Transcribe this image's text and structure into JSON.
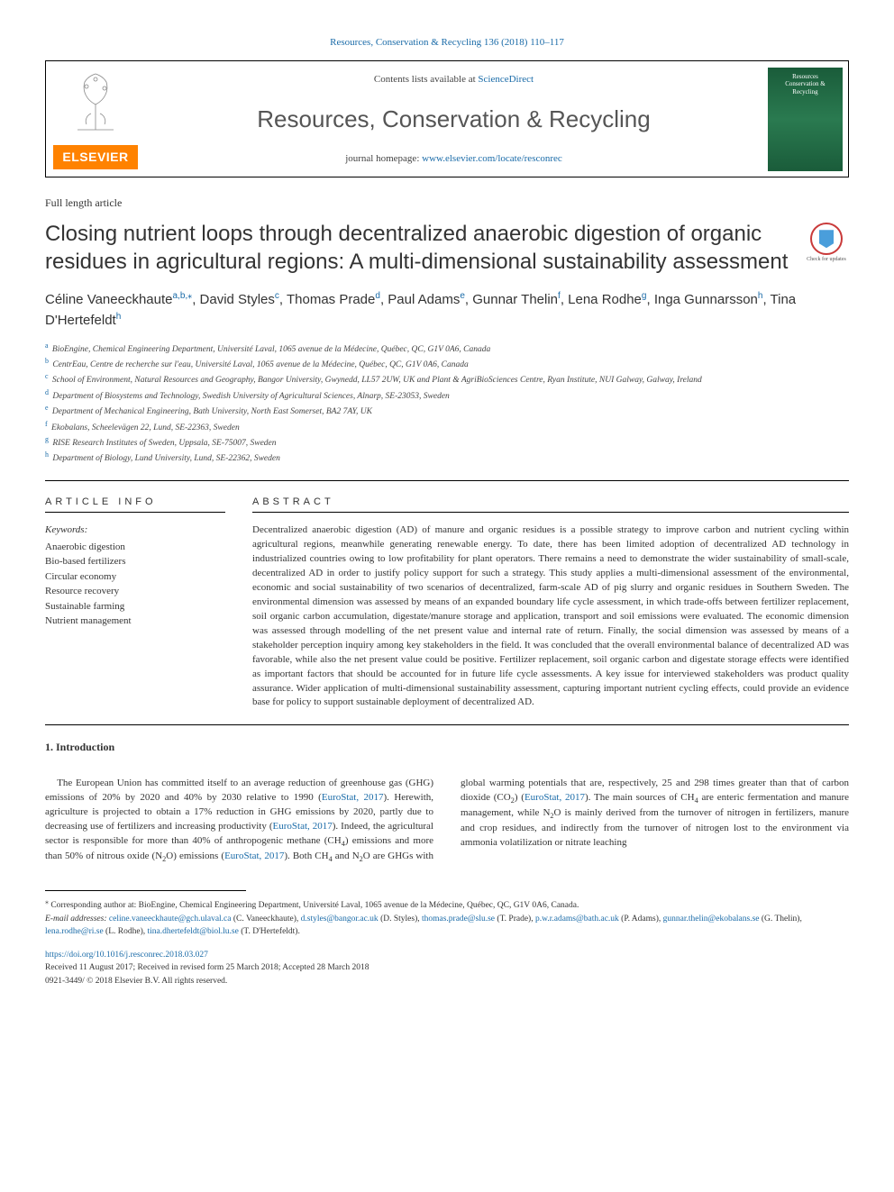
{
  "journal_ref": "Resources, Conservation & Recycling 136 (2018) 110–117",
  "header": {
    "contents_prefix": "Contents lists available at ",
    "contents_link": "ScienceDirect",
    "journal_name": "Resources, Conservation & Recycling",
    "homepage_prefix": "journal homepage: ",
    "homepage_link": "www.elsevier.com/locate/resconrec",
    "elsevier": "ELSEVIER",
    "cover_line1": "Resources",
    "cover_line2": "Conservation &",
    "cover_line3": "Recycling"
  },
  "article_type": "Full length article",
  "title": "Closing nutrient loops through decentralized anaerobic digestion of organic residues in agricultural regions: A multi-dimensional sustainability assessment",
  "check_updates": "Check for updates",
  "authors": [
    {
      "name": "Céline Vaneeckhaute",
      "aff": "a,b,",
      "corr": "⁎"
    },
    {
      "name": "David Styles",
      "aff": "c"
    },
    {
      "name": "Thomas Prade",
      "aff": "d"
    },
    {
      "name": "Paul Adams",
      "aff": "e"
    },
    {
      "name": "Gunnar Thelin",
      "aff": "f"
    },
    {
      "name": "Lena Rodhe",
      "aff": "g"
    },
    {
      "name": "Inga Gunnarsson",
      "aff": "h"
    },
    {
      "name": "Tina D'Hertefeldt",
      "aff": "h"
    }
  ],
  "affiliations": [
    {
      "key": "a",
      "text": "BioEngine, Chemical Engineering Department, Université Laval, 1065 avenue de la Médecine, Québec, QC, G1V 0A6, Canada"
    },
    {
      "key": "b",
      "text": "CentrEau, Centre de recherche sur l'eau, Université Laval, 1065 avenue de la Médecine, Québec, QC, G1V 0A6, Canada"
    },
    {
      "key": "c",
      "text": "School of Environment, Natural Resources and Geography, Bangor University, Gwynedd, LL57 2UW, UK and Plant & AgriBioSciences Centre, Ryan Institute, NUI Galway, Galway, Ireland"
    },
    {
      "key": "d",
      "text": "Department of Biosystems and Technology, Swedish University of Agricultural Sciences, Alnarp, SE-23053, Sweden"
    },
    {
      "key": "e",
      "text": "Department of Mechanical Engineering, Bath University, North East Somerset, BA2 7AY, UK"
    },
    {
      "key": "f",
      "text": "Ekobalans, Scheelevägen 22, Lund, SE-22363, Sweden"
    },
    {
      "key": "g",
      "text": "RISE Research Institutes of Sweden, Uppsala, SE-75007, Sweden"
    },
    {
      "key": "h",
      "text": "Department of Biology, Lund University, Lund, SE-22362, Sweden"
    }
  ],
  "article_info_heading": "ARTICLE INFO",
  "keywords_label": "Keywords:",
  "keywords": [
    "Anaerobic digestion",
    "Bio-based fertilizers",
    "Circular economy",
    "Resource recovery",
    "Sustainable farming",
    "Nutrient management"
  ],
  "abstract_heading": "ABSTRACT",
  "abstract": "Decentralized anaerobic digestion (AD) of manure and organic residues is a possible strategy to improve carbon and nutrient cycling within agricultural regions, meanwhile generating renewable energy. To date, there has been limited adoption of decentralized AD technology in industrialized countries owing to low profitability for plant operators. There remains a need to demonstrate the wider sustainability of small-scale, decentralized AD in order to justify policy support for such a strategy. This study applies a multi-dimensional assessment of the environmental, economic and social sustainability of two scenarios of decentralized, farm-scale AD of pig slurry and organic residues in Southern Sweden. The environmental dimension was assessed by means of an expanded boundary life cycle assessment, in which trade-offs between fertilizer replacement, soil organic carbon accumulation, digestate/manure storage and application, transport and soil emissions were evaluated. The economic dimension was assessed through modelling of the net present value and internal rate of return. Finally, the social dimension was assessed by means of a stakeholder perception inquiry among key stakeholders in the field. It was concluded that the overall environmental balance of decentralized AD was favorable, while also the net present value could be positive. Fertilizer replacement, soil organic carbon and digestate storage effects were identified as important factors that should be accounted for in future life cycle assessments. A key issue for interviewed stakeholders was product quality assurance. Wider application of multi-dimensional sustainability assessment, capturing important nutrient cycling effects, could provide an evidence base for policy to support sustainable deployment of decentralized AD.",
  "intro_heading": "1. Introduction",
  "intro_p1_a": "The European Union has committed itself to an average reduction of greenhouse gas (GHG) emissions of 20% by 2020 and 40% by 2030 relative to 1990 (",
  "intro_p1_link1": "EuroStat, 2017",
  "intro_p1_b": "). Herewith, agriculture is projected to obtain a 17% reduction in GHG emissions by 2020, partly due to decreasing use of fertilizers and increasing productivity (",
  "intro_p1_link2": "EuroStat, 2017",
  "intro_p1_c": "). Indeed, the agricultural sector is responsible for more than 40% of anthropogenic methane (CH",
  "intro_p1_d": ") emissions and more than 50% of nitrous oxide (N",
  "intro_p1_e": "O) emissions (",
  "intro_p1_link3": "EuroStat, 2017",
  "intro_p1_f": "). Both CH",
  "intro_p1_g": " and N",
  "intro_p1_h": "O are GHGs with global warming potentials that are, respectively, 25 and 298 times greater than that of carbon dioxide (CO",
  "intro_p1_i": ") (",
  "intro_p1_link4": "EuroStat, 2017",
  "intro_p1_j": "). The main sources of CH",
  "intro_p1_k": " are enteric fermentation and manure management, while N",
  "intro_p1_l": "O is mainly derived from the turnover of nitrogen in fertilizers, manure and crop residues, and indirectly from the turnover of nitrogen lost to the environment via ammonia volatilization or nitrate leaching",
  "corresponding": {
    "marker": "⁎",
    "text": " Corresponding author at: BioEngine, Chemical Engineering Department, Université Laval, 1065 avenue de la Médecine, Québec, QC, G1V 0A6, Canada."
  },
  "email_label": "E-mail addresses: ",
  "emails": [
    {
      "addr": "celine.vaneeckhaute@gch.ulaval.ca",
      "who": " (C. Vaneeckhaute), "
    },
    {
      "addr": "d.styles@bangor.ac.uk",
      "who": " (D. Styles), "
    },
    {
      "addr": "thomas.prade@slu.se",
      "who": " (T. Prade), "
    },
    {
      "addr": "p.w.r.adams@bath.ac.uk",
      "who": " (P. Adams), "
    },
    {
      "addr": "gunnar.thelin@ekobalans.se",
      "who": " (G. Thelin), "
    },
    {
      "addr": "lena.rodhe@ri.se",
      "who": " (L. Rodhe), "
    },
    {
      "addr": "tina.dhertefeldt@biol.lu.se",
      "who": " (T. D'Hertefeldt)."
    }
  ],
  "doi": "https://doi.org/10.1016/j.resconrec.2018.03.027",
  "history": "Received 11 August 2017; Received in revised form 25 March 2018; Accepted 28 March 2018",
  "copyright": "0921-3449/ © 2018 Elsevier B.V. All rights reserved.",
  "colors": {
    "link": "#1a6ba8",
    "elsevier_bg": "#ff8200",
    "cover_bg": "#1a5c3a"
  }
}
